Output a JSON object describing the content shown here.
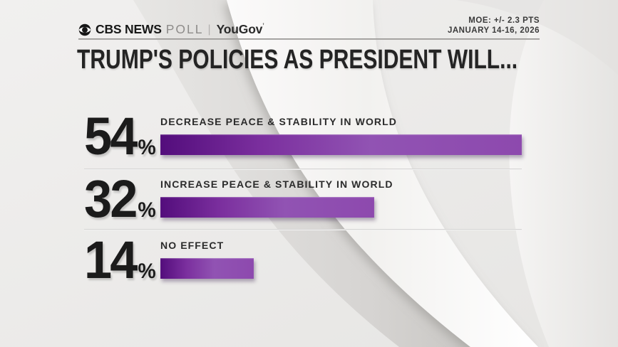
{
  "header": {
    "brand": {
      "eye_icon": "cbs-eye-icon",
      "network": "CBS NEWS",
      "product": "POLL",
      "separator": "|",
      "partner": "YouGov",
      "partner_mark": "’"
    },
    "moe": {
      "line1": "MOE: +/- 2.3 PTS",
      "line2": "JANUARY 14-16, 2026"
    }
  },
  "title": "TRUMP'S POLICIES AS PRESIDENT WILL...",
  "chart_data": {
    "type": "bar",
    "orientation": "horizontal",
    "title": "TRUMP'S POLICIES AS PRESIDENT WILL...",
    "unit": "%",
    "categories": [
      "DECREASE PEACE & STABILITY IN WORLD",
      "INCREASE PEACE & STABILITY IN WORLD",
      "NO EFFECT"
    ],
    "values": [
      54,
      32,
      14
    ],
    "value_labels": [
      "54%",
      "32%",
      "14%"
    ],
    "xlim": [
      0,
      54
    ],
    "grid": "off",
    "legend": "none",
    "colors": {
      "bar_gradient": [
        "#530d7c",
        "#7b2f9e",
        "#9153b3",
        "#8d49ae"
      ],
      "value_text": "#1b1b1b",
      "label_text": "#2b2b2b"
    }
  },
  "colors": {
    "background": "#ebeae8",
    "title_text": "#242424",
    "header_rule": "#8f8d8b",
    "row_divider": "#c9c7c5"
  }
}
